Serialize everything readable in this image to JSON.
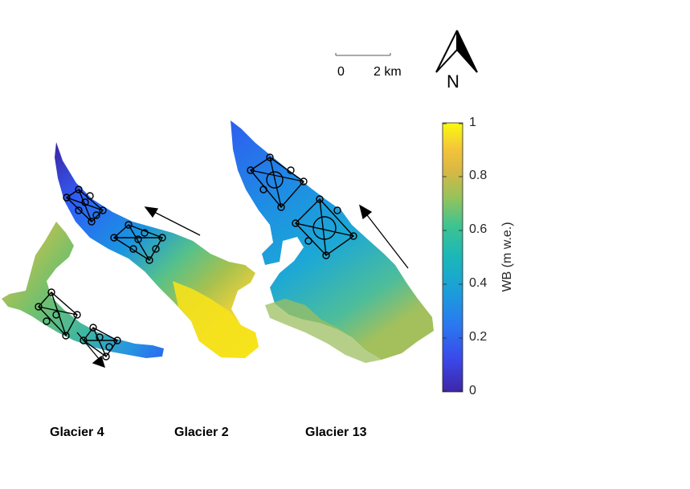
{
  "map": {
    "type": "glacier winter balance map",
    "glaciers": [
      {
        "name": "Glacier 4",
        "flow_direction": "southeast"
      },
      {
        "name": "Glacier 2",
        "flow_direction": "northwest"
      },
      {
        "name": "Glacier 13",
        "flow_direction": "northwest"
      }
    ],
    "scale_bar": {
      "start_label": "0",
      "end_label": "2 km"
    },
    "north_arrow": {
      "label": "N"
    },
    "colorbar": {
      "title": "WB (m w.e.)",
      "min": 0,
      "max": 1,
      "ticks": [
        "0",
        "0.2",
        "0.4",
        "0.6",
        "0.8",
        "1"
      ],
      "colormap": "parula",
      "colors": [
        "#3e26a8",
        "#2f5ef7",
        "#1a9fd8",
        "#25bfa3",
        "#86c653",
        "#f0b93a",
        "#f9fb0e"
      ]
    },
    "sampling_marker": "open circle"
  }
}
